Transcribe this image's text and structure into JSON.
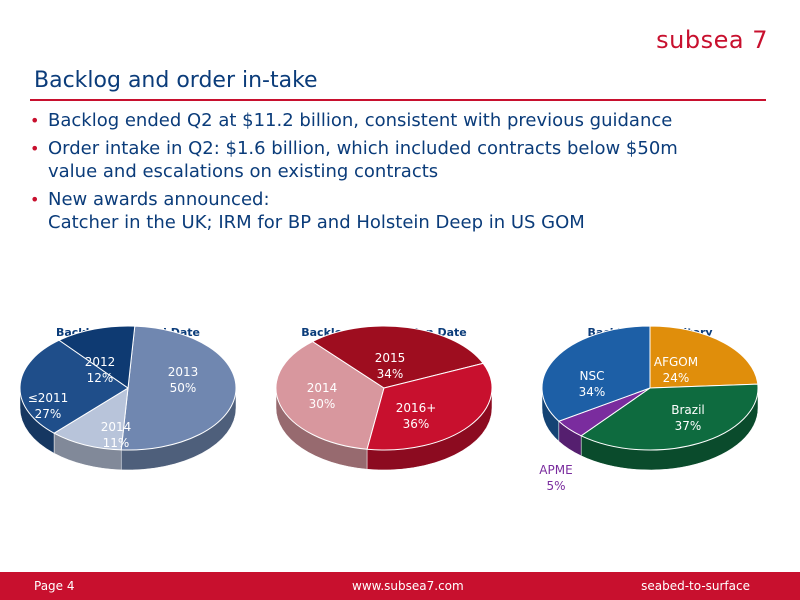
{
  "header": {
    "logo_text": "subsea 7"
  },
  "slide": {
    "title": "Backlog and order in-take",
    "bullets": [
      {
        "lines": [
          "Backlog ended Q2 at $11.2 billion, consistent with previous guidance"
        ]
      },
      {
        "lines": [
          "Order intake in Q2: $1.6 billion, which included contracts below $50m",
          "value and escalations on existing contracts"
        ]
      },
      {
        "lines": [
          "New awards announced:",
          "Catcher in the UK; IRM for BP and Holstein Deep in US GOM"
        ]
      }
    ]
  },
  "chart_data": [
    {
      "type": "pie",
      "title": "Backlog by Award Date",
      "slices": [
        {
          "label": "2013",
          "value": 50,
          "display": "50%",
          "color": "#7087b0"
        },
        {
          "label": "2014",
          "value": 11,
          "display": "11%",
          "color": "#b8c4da"
        },
        {
          "label": "≤2011",
          "value": 27,
          "display": "27%",
          "color": "#1f4e8a"
        },
        {
          "label": "2012",
          "value": 12,
          "display": "12%",
          "color": "#0e3a72"
        }
      ]
    },
    {
      "type": "pie",
      "title": "Backlog by Execution Date",
      "slices": [
        {
          "label": "2016+",
          "value": 36,
          "display": "36%",
          "color": "#d8979e"
        },
        {
          "label": "2014",
          "value": 30,
          "display": "30%",
          "color": "#9e0d1f"
        },
        {
          "label": "2015",
          "value": 34,
          "display": "34%",
          "color": "#c8102e"
        }
      ]
    },
    {
      "type": "pie",
      "title": "Backlog by Territory",
      "slices": [
        {
          "label": "AFGOM",
          "value": 24,
          "display": "24%",
          "color": "#e08e0b"
        },
        {
          "label": "Brazil",
          "value": 37,
          "display": "37%",
          "color": "#0e6b3f"
        },
        {
          "label": "APME",
          "value": 5,
          "display": "5%",
          "color": "#7a2c9e"
        },
        {
          "label": "NSC",
          "value": 34,
          "display": "34%",
          "color": "#1d5fa6"
        }
      ]
    }
  ],
  "footer": {
    "page_label": "Page  4",
    "url": "www.subsea7.com",
    "tagline": "seabed-to-surface"
  }
}
